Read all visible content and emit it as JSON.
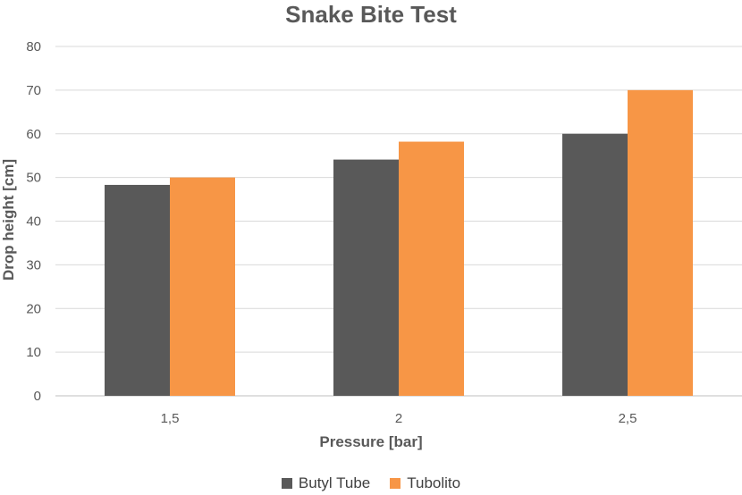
{
  "chart_data": {
    "type": "bar",
    "title": "Snake Bite Test",
    "xlabel": "Pressure [bar]",
    "ylabel": "Drop height [cm]",
    "categories": [
      "1,5",
      "2",
      "2,5"
    ],
    "series": [
      {
        "name": "Butyl Tube",
        "color": "#595959",
        "values": [
          48.3,
          54.1,
          60
        ]
      },
      {
        "name": "Tubolito",
        "color": "#F79646",
        "values": [
          50,
          58.2,
          70
        ]
      }
    ],
    "ylim": [
      0,
      80
    ],
    "yticks": [
      0,
      10,
      20,
      30,
      40,
      50,
      60,
      70,
      80
    ],
    "grid": true,
    "legend_position": "bottom"
  }
}
